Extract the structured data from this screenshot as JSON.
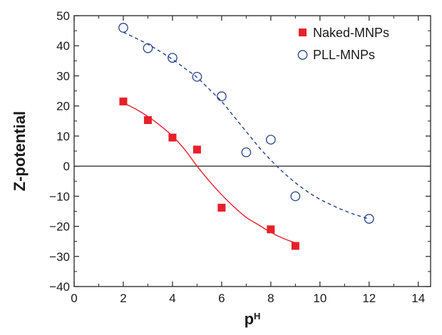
{
  "chart_data": {
    "type": "scatter",
    "title": "",
    "xlabel": "p",
    "xlabel_superscript": "H",
    "ylabel": "Z-potential",
    "xlim": [
      0,
      14.5
    ],
    "ylim": [
      -40,
      50
    ],
    "xticks": [
      0,
      2,
      4,
      6,
      8,
      10,
      12,
      14
    ],
    "yticks": [
      -40,
      -30,
      -20,
      -10,
      0,
      10,
      20,
      30,
      40,
      50
    ],
    "grid": false,
    "legend_position": "top-right",
    "zero_line": true,
    "series": [
      {
        "name": "Naked-MNPs",
        "marker": "filled-square",
        "color": "#e8202a",
        "line_style": "solid",
        "x": [
          2,
          3,
          4,
          5,
          6,
          8,
          9
        ],
        "y": [
          21.5,
          15.3,
          9.5,
          5.5,
          -13.8,
          -21,
          -26.5
        ],
        "fit": {
          "x": [
            2,
            2.5,
            3,
            3.5,
            4,
            4.5,
            5,
            5.5,
            6,
            6.5,
            7,
            7.5,
            8,
            8.5,
            9
          ],
          "y": [
            21,
            19,
            16.5,
            13.5,
            10,
            5.5,
            0,
            -5,
            -9.5,
            -13.5,
            -17,
            -19.5,
            -22,
            -24,
            -25.5
          ]
        }
      },
      {
        "name": "PLL-MNPs",
        "marker": "open-circle",
        "color": "#23418f",
        "line_style": "dashed",
        "x": [
          2,
          3,
          4,
          5,
          6,
          7,
          8,
          9,
          12
        ],
        "y": [
          46,
          39.2,
          36,
          29.7,
          23.2,
          4.6,
          8.8,
          -10,
          -17.5
        ],
        "fit": {
          "x": [
            2,
            3,
            4,
            4.5,
            5,
            5.5,
            6,
            6.5,
            7,
            7.5,
            8,
            8.5,
            9,
            9.5,
            10,
            10.5,
            11,
            11.5,
            12
          ],
          "y": [
            44.5,
            40.5,
            35.5,
            32.5,
            29.5,
            25.5,
            21.5,
            16.5,
            11.5,
            6.5,
            2,
            -2,
            -5.5,
            -8.5,
            -11,
            -13,
            -14.8,
            -16.3,
            -17.5
          ]
        }
      }
    ]
  }
}
